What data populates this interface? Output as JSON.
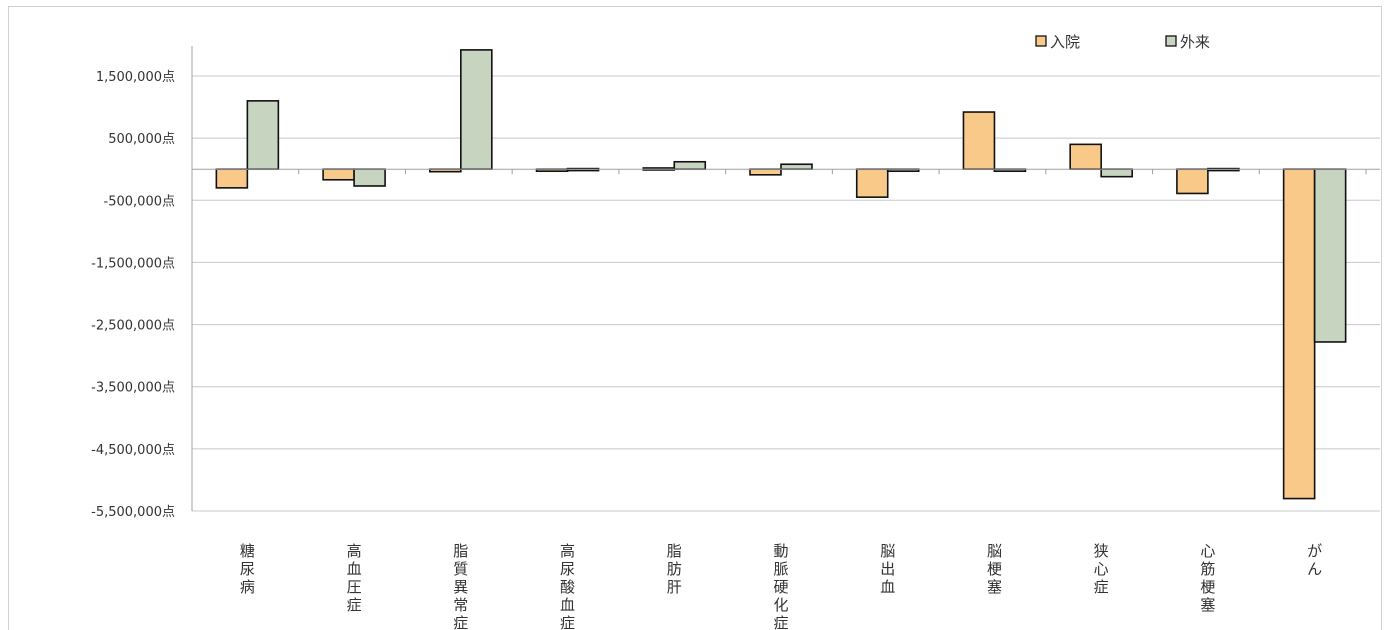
{
  "chart_data": {
    "type": "bar",
    "title": "",
    "xlabel": "",
    "ylabel": "",
    "ylim": [
      -5500000,
      2200000
    ],
    "y_ticks": [
      1500000,
      500000,
      -500000,
      -1500000,
      -2500000,
      -3500000,
      -4500000,
      -5500000
    ],
    "y_tick_labels": [
      "1,500,000点",
      "500,000点",
      "-500,000点",
      "-1,500,000点",
      "-2,500,000点",
      "-3,500,000点",
      "-4,500,000点",
      "-5,500,000点"
    ],
    "grid": true,
    "legend_position": "top-right",
    "categories": [
      "糖尿病",
      "高血圧症",
      "脂質異常症",
      "高尿酸血症",
      "脂肪肝",
      "動脈硬化症",
      "脳出血",
      "脳梗塞",
      "狭心症",
      "心筋梗塞",
      "がん"
    ],
    "series": [
      {
        "name": "入院",
        "color": "#f9c98a",
        "values": [
          -300000,
          -170000,
          -40000,
          -10000,
          20000,
          -90000,
          -450000,
          920000,
          400000,
          -390000,
          -5300000
        ]
      },
      {
        "name": "外来",
        "color": "#c6d4c0",
        "values": [
          1100000,
          -270000,
          1920000,
          10000,
          120000,
          80000,
          -20000,
          -10000,
          -120000,
          10000,
          -2780000
        ]
      }
    ]
  }
}
